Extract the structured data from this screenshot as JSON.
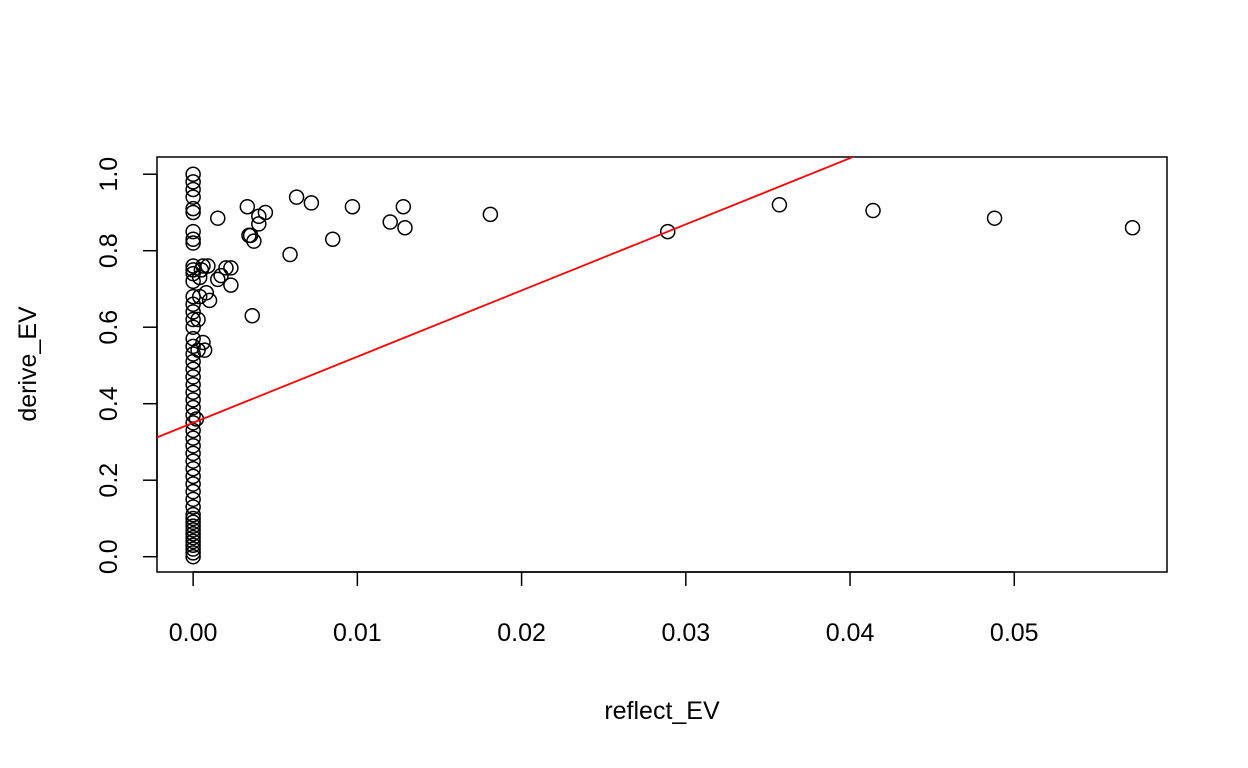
{
  "chart_data": {
    "type": "scatter",
    "title": "",
    "xlabel": "reflect_EV",
    "ylabel": "derive_EV",
    "xlim": [
      -0.0022,
      0.0593
    ],
    "ylim": [
      -0.04,
      1.045
    ],
    "xticks": [
      0.0,
      0.01,
      0.02,
      0.03,
      0.04,
      0.05
    ],
    "xtick_labels": [
      "0.00",
      "0.01",
      "0.02",
      "0.03",
      "0.04",
      "0.05"
    ],
    "yticks": [
      0.0,
      0.2,
      0.4,
      0.6,
      0.8,
      1.0
    ],
    "ytick_labels": [
      "0.0",
      "0.2",
      "0.4",
      "0.6",
      "0.8",
      "1.0"
    ],
    "grid": false,
    "marker": "open-circle",
    "colors": {
      "points": "#000000",
      "fit_line": "#ff0000"
    },
    "fit_line": {
      "intercept": 0.35,
      "slope": 17.3
    },
    "series": [
      {
        "values": [
          [
            0,
            1.0
          ],
          [
            0,
            0.98
          ],
          [
            0,
            0.96
          ],
          [
            0,
            0.94
          ],
          [
            0,
            0.91
          ],
          [
            0,
            0.9
          ],
          [
            0,
            0.85
          ],
          [
            0,
            0.83
          ],
          [
            0,
            0.82
          ],
          [
            0,
            0.76
          ],
          [
            0,
            0.75
          ],
          [
            0,
            0.74
          ],
          [
            0,
            0.72
          ],
          [
            0,
            0.68
          ],
          [
            0,
            0.66
          ],
          [
            0,
            0.64
          ],
          [
            0,
            0.62
          ],
          [
            0,
            0.6
          ],
          [
            0,
            0.57
          ],
          [
            0,
            0.55
          ],
          [
            0,
            0.53
          ],
          [
            0,
            0.51
          ],
          [
            0,
            0.49
          ],
          [
            0,
            0.47
          ],
          [
            0,
            0.45
          ],
          [
            0,
            0.43
          ],
          [
            0,
            0.41
          ],
          [
            0,
            0.39
          ],
          [
            0,
            0.37
          ],
          [
            0,
            0.35
          ],
          [
            0,
            0.33
          ],
          [
            0,
            0.31
          ],
          [
            0,
            0.29
          ],
          [
            0,
            0.27
          ],
          [
            0,
            0.25
          ],
          [
            0,
            0.23
          ],
          [
            0,
            0.21
          ],
          [
            0,
            0.19
          ],
          [
            0,
            0.17
          ],
          [
            0,
            0.15
          ],
          [
            0,
            0.13
          ],
          [
            0,
            0.11
          ],
          [
            0,
            0.1
          ],
          [
            0,
            0.09
          ],
          [
            0,
            0.08
          ],
          [
            0,
            0.07
          ],
          [
            0,
            0.06
          ],
          [
            0,
            0.05
          ],
          [
            0,
            0.04
          ],
          [
            0,
            0.03
          ],
          [
            0,
            0.02
          ],
          [
            0,
            0.01
          ],
          [
            0,
            0.0
          ],
          [
            0.0002,
            0.36
          ],
          [
            0.0003,
            0.54
          ],
          [
            0.0003,
            0.62
          ],
          [
            0.0004,
            0.68
          ],
          [
            0.0004,
            0.73
          ],
          [
            0.0005,
            0.75
          ],
          [
            0.0006,
            0.76
          ],
          [
            0.0006,
            0.56
          ],
          [
            0.0007,
            0.54
          ],
          [
            0.0008,
            0.69
          ],
          [
            0.0009,
            0.76
          ],
          [
            0.001,
            0.67
          ],
          [
            0.0015,
            0.885
          ],
          [
            0.0015,
            0.725
          ],
          [
            0.0017,
            0.735
          ],
          [
            0.002,
            0.755
          ],
          [
            0.0023,
            0.755
          ],
          [
            0.0023,
            0.71
          ],
          [
            0.0033,
            0.915
          ],
          [
            0.0034,
            0.84
          ],
          [
            0.0035,
            0.84
          ],
          [
            0.0036,
            0.63
          ],
          [
            0.0037,
            0.825
          ],
          [
            0.004,
            0.87
          ],
          [
            0.004,
            0.89
          ],
          [
            0.0044,
            0.9
          ],
          [
            0.0059,
            0.79
          ],
          [
            0.0063,
            0.94
          ],
          [
            0.0072,
            0.925
          ],
          [
            0.0085,
            0.83
          ],
          [
            0.0097,
            0.915
          ],
          [
            0.012,
            0.875
          ],
          [
            0.0128,
            0.915
          ],
          [
            0.0129,
            0.86
          ],
          [
            0.0181,
            0.895
          ],
          [
            0.0289,
            0.85
          ],
          [
            0.0357,
            0.92
          ],
          [
            0.0414,
            0.905
          ],
          [
            0.0488,
            0.885
          ],
          [
            0.0572,
            0.86
          ]
        ]
      }
    ]
  }
}
